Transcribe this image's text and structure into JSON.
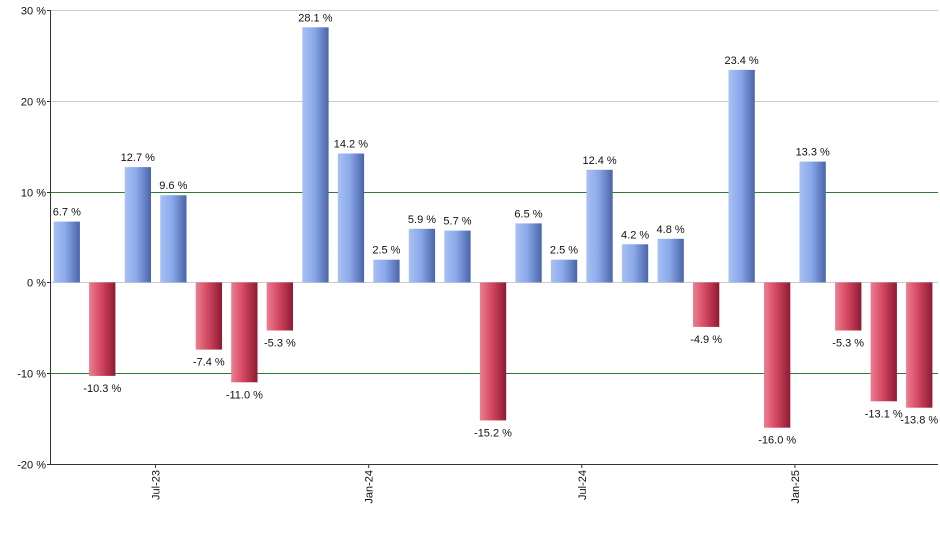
{
  "chart_data": {
    "type": "bar",
    "title": "",
    "xlabel": "",
    "ylabel": "",
    "ylim": [
      -20,
      30
    ],
    "y_ticks": [
      -20,
      -10,
      0,
      10,
      20,
      30
    ],
    "y_tick_labels": [
      "-20 %",
      "-10 %",
      "0 %",
      "10 %",
      "20 %",
      "30 %"
    ],
    "x_tick_labels": [
      {
        "label": "Jul-23",
        "after_index": 2
      },
      {
        "label": "Jan-24",
        "after_index": 8
      },
      {
        "label": "Jul-24",
        "after_index": 14
      },
      {
        "label": "Jan-25",
        "after_index": 20
      }
    ],
    "values": [
      6.7,
      -10.3,
      12.7,
      9.6,
      -7.4,
      -11.0,
      -5.3,
      28.1,
      14.2,
      2.5,
      5.9,
      5.7,
      -15.2,
      6.5,
      2.5,
      12.4,
      4.2,
      4.8,
      -4.9,
      23.4,
      -16.0,
      13.3,
      -5.3,
      -13.1,
      -13.8
    ],
    "labels": [
      "6.7 %",
      "-10.3 %",
      "12.7 %",
      "9.6 %",
      "-7.4 %",
      "-11.0 %",
      "-5.3 %",
      "28.1 %",
      "14.2 %",
      "2.5 %",
      "5.9 %",
      "5.7 %",
      "-15.2 %",
      "6.5 %",
      "2.5 %",
      "12.4 %",
      "4.2 %",
      "4.8 %",
      "-4.9 %",
      "23.4 %",
      "-16.0 %",
      "13.3 %",
      "-5.3 %",
      "-13.1 %",
      "-13.8 %"
    ],
    "grid": true,
    "highlight_lines": [
      10,
      -10
    ],
    "colors": {
      "positive": "#6f8fd6",
      "negative": "#c8334f",
      "grid": "#cccccc",
      "highlight": "#2e7d32",
      "axis": "#333333"
    }
  }
}
